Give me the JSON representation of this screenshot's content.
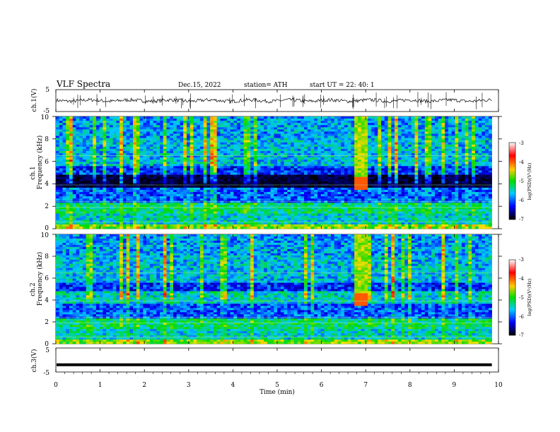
{
  "header": {
    "title": "VLF  Spectra",
    "date": "Dec.15, 2022",
    "station": "station= ATH",
    "start": "start  UT  =   22: 40: 1"
  },
  "chart_data": [
    {
      "type": "line",
      "panel": "ch1-waveform",
      "ylabel": "ch.1(V)",
      "ylim": [
        -5,
        5
      ],
      "yticks": [
        "5",
        "-5"
      ],
      "baseline": 0,
      "trace_color": "#000000"
    },
    {
      "type": "heatmap",
      "panel": "ch1-spectrogram",
      "ylabel_line1": "ch.1",
      "ylabel_line2": "Frequency (kHz)",
      "ylim": [
        0,
        10
      ],
      "yticks": [
        "0",
        "2",
        "4",
        "6",
        "8",
        "10"
      ],
      "band_events": [
        {
          "t_start": 6.75,
          "t_end": 7.05,
          "f_low": 3.5,
          "f_high": 10
        }
      ],
      "colorbar": {
        "label": "log(PSD)(V²/Hz)",
        "range": [
          -7,
          -3
        ],
        "ticks": [
          "-3",
          "-4",
          "-5",
          "-6",
          "-7"
        ],
        "colors": [
          "#ffffff",
          "#ff0000",
          "#ffcc00",
          "#00dd00",
          "#00ccff",
          "#0000ff",
          "#000000"
        ]
      }
    },
    {
      "type": "heatmap",
      "panel": "ch2-spectrogram",
      "ylabel_line1": "ch.2",
      "ylabel_line2": "Frequency (kHz)",
      "ylim": [
        0,
        10
      ],
      "yticks": [
        "0",
        "2",
        "4",
        "6",
        "8",
        "10"
      ],
      "band_events": [
        {
          "t_start": 6.75,
          "t_end": 7.05,
          "f_low": 3.5,
          "f_high": 10
        }
      ],
      "colorbar": {
        "label": "log(PSD)(V²/Hz)",
        "range": [
          -7,
          -3
        ],
        "ticks": [
          "-3",
          "-4",
          "-5",
          "-6",
          "-7"
        ],
        "colors": [
          "#ffffff",
          "#ff0000",
          "#ffcc00",
          "#00dd00",
          "#00ccff",
          "#0000ff",
          "#000000"
        ]
      }
    },
    {
      "type": "line",
      "panel": "ch3-waveform",
      "ylabel": "ch.3(V)",
      "ylim": [
        -5,
        5
      ],
      "yticks": [
        "5",
        "-5"
      ],
      "constant_value": -2,
      "trace_color": "#000000"
    }
  ],
  "xaxis": {
    "label": "Time  (min)",
    "xlim": [
      0,
      10
    ],
    "ticks": [
      "0",
      "1",
      "2",
      "3",
      "4",
      "5",
      "6",
      "7",
      "8",
      "9",
      "10"
    ],
    "data_end": 9.85
  }
}
